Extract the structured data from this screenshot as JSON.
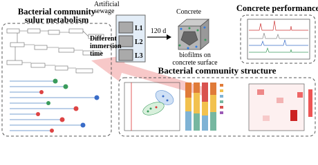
{
  "left_panel": {
    "title_lines": [
      "Bacterial community",
      "sulur metabolism"
    ]
  },
  "sewage": {
    "label_lines": [
      "Artificial",
      "sewage"
    ]
  },
  "levels": [
    "L1",
    "L2",
    "L3"
  ],
  "immersion_lines": [
    "Different",
    "immersion",
    "time"
  ],
  "duration": "120 d",
  "concrete": {
    "label": "Concrete",
    "biofilm_lines": [
      "biofilms on",
      "concrete surface"
    ]
  },
  "performance": {
    "title": "Concrete performance"
  },
  "structure": {
    "title": "Bacterial community structure"
  }
}
